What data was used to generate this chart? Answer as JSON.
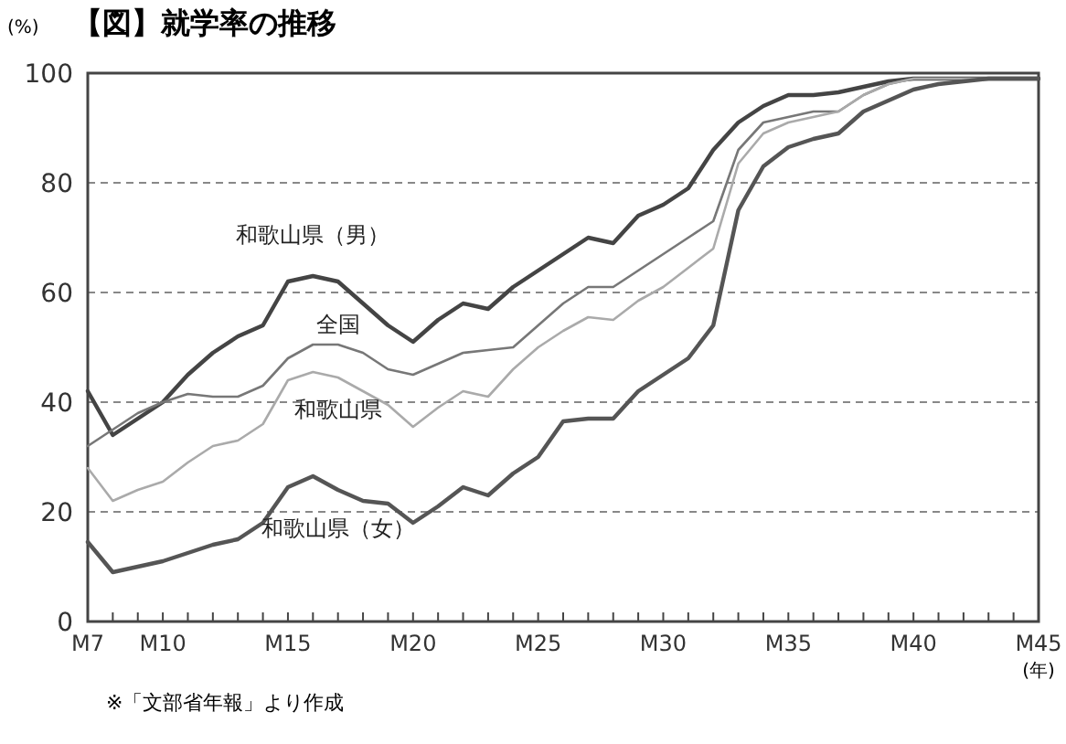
{
  "chart_data": {
    "type": "line",
    "title": "【図】就学率の推移",
    "ylabel": "(%)",
    "xlabel": "(年)",
    "annotations": [
      "※「文部省年報」より作成"
    ],
    "categories": [
      "M7",
      null,
      null,
      "M10",
      null,
      null,
      null,
      null,
      "M15",
      null,
      null,
      null,
      null,
      "M20",
      null,
      null,
      null,
      null,
      "M25",
      null,
      null,
      null,
      null,
      "M30",
      null,
      null,
      null,
      null,
      "M35",
      null,
      null,
      null,
      null,
      "M40",
      null,
      null,
      null,
      null,
      "M45"
    ],
    "ylim": [
      0,
      100
    ],
    "yticks": [
      0,
      20,
      40,
      60,
      80,
      100
    ],
    "grid": "y",
    "legend": false,
    "line_style": "solid",
    "marker": "none",
    "series": [
      {
        "name": "和歌山県（男）",
        "color": "#444444",
        "values": [
          42,
          34,
          37,
          40,
          45,
          49,
          52,
          54,
          62,
          63,
          62,
          58,
          54,
          51,
          55,
          58,
          57,
          61,
          64,
          67,
          70,
          69,
          74,
          76,
          79,
          86,
          91,
          94,
          96,
          96,
          96.5,
          97.5,
          98.5,
          99,
          99,
          99,
          99,
          99,
          99
        ]
      },
      {
        "name": "全国",
        "color": "#777777",
        "values": [
          32,
          35,
          38,
          40,
          41.5,
          41,
          41,
          43,
          48,
          50.5,
          50.5,
          49,
          46,
          45,
          47,
          49,
          49.5,
          50,
          54,
          58,
          61,
          61,
          64,
          67,
          70,
          73,
          86,
          91,
          92,
          93,
          93,
          96,
          98,
          99,
          99,
          99,
          99,
          99,
          99
        ]
      },
      {
        "name": "和歌山県",
        "color": "#aaaaaa",
        "values": [
          28,
          22,
          24,
          25.5,
          29,
          32,
          33,
          36,
          44,
          45.5,
          44.5,
          42,
          39.5,
          35.5,
          39,
          42,
          41,
          46,
          50,
          53,
          55.5,
          55,
          58.5,
          61,
          64.5,
          68,
          83.5,
          89,
          91,
          92,
          93,
          96,
          98,
          99,
          99,
          99,
          99,
          99,
          99
        ]
      },
      {
        "name": "和歌山県（女）",
        "color": "#555555",
        "values": [
          14.5,
          9,
          10,
          11,
          12.5,
          14,
          15,
          18,
          24.5,
          26.5,
          24,
          22,
          21.5,
          18,
          21,
          24.5,
          23,
          27,
          30,
          36.5,
          37,
          37,
          42,
          45,
          48,
          54,
          75,
          83,
          86.5,
          88,
          89,
          93,
          95,
          97,
          98,
          98.5,
          99,
          99,
          99
        ]
      }
    ]
  }
}
